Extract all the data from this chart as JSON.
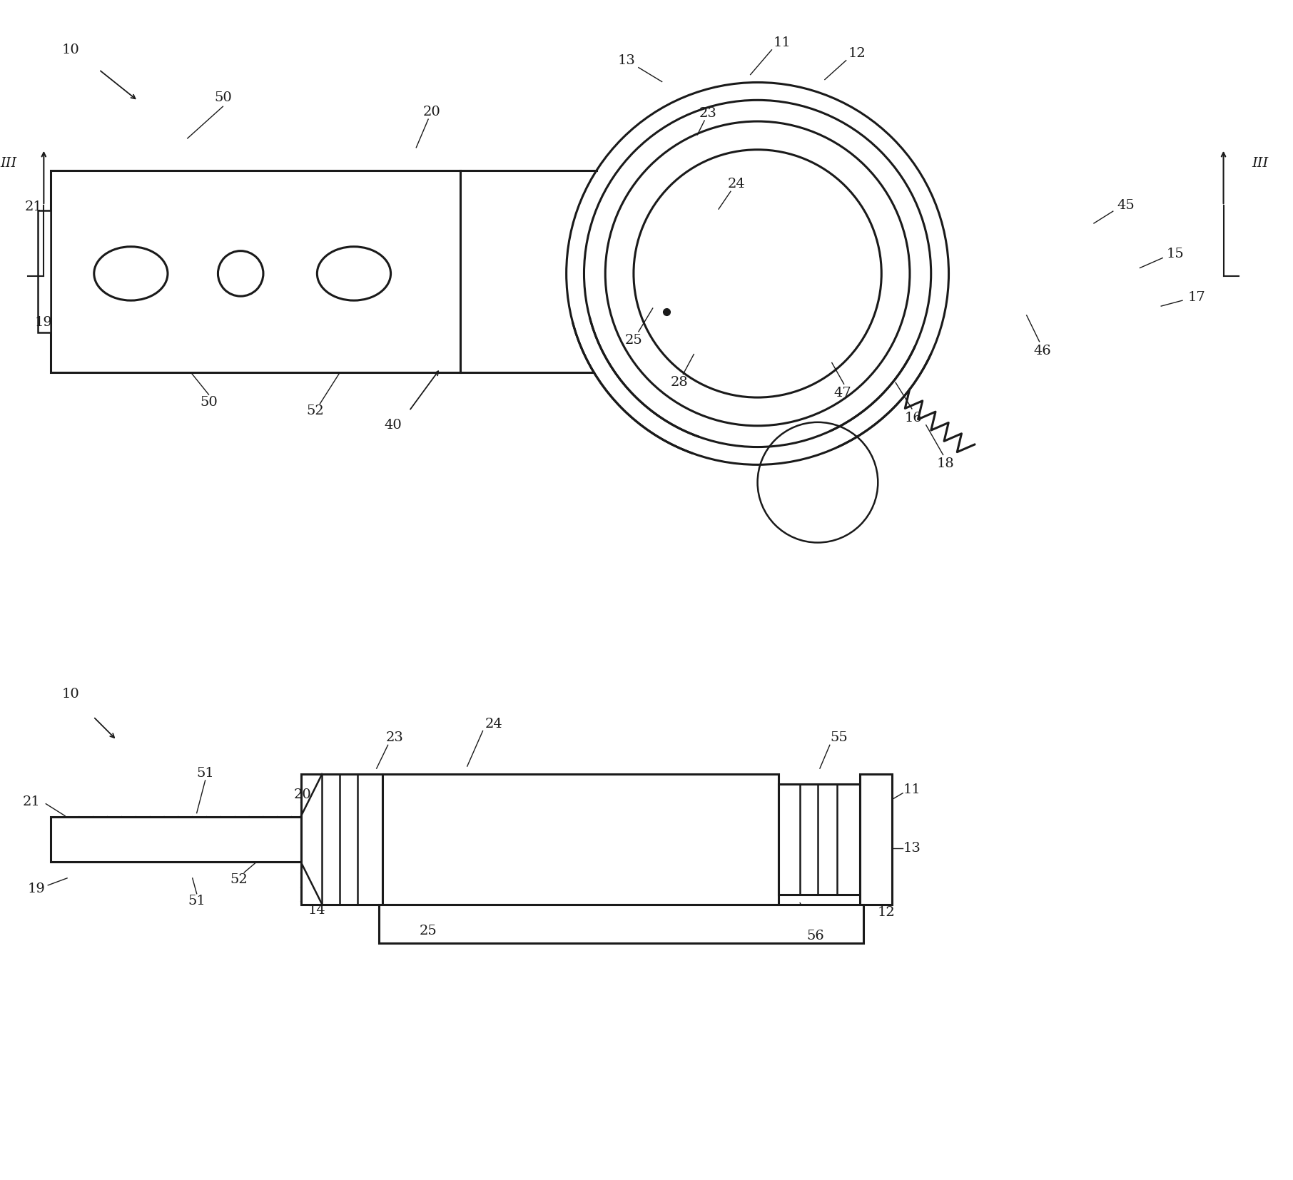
{
  "bg_color": "#ffffff",
  "line_color": "#1a1a1a",
  "fig_width": 18.12,
  "fig_height": 16.54,
  "dpi": 100
}
